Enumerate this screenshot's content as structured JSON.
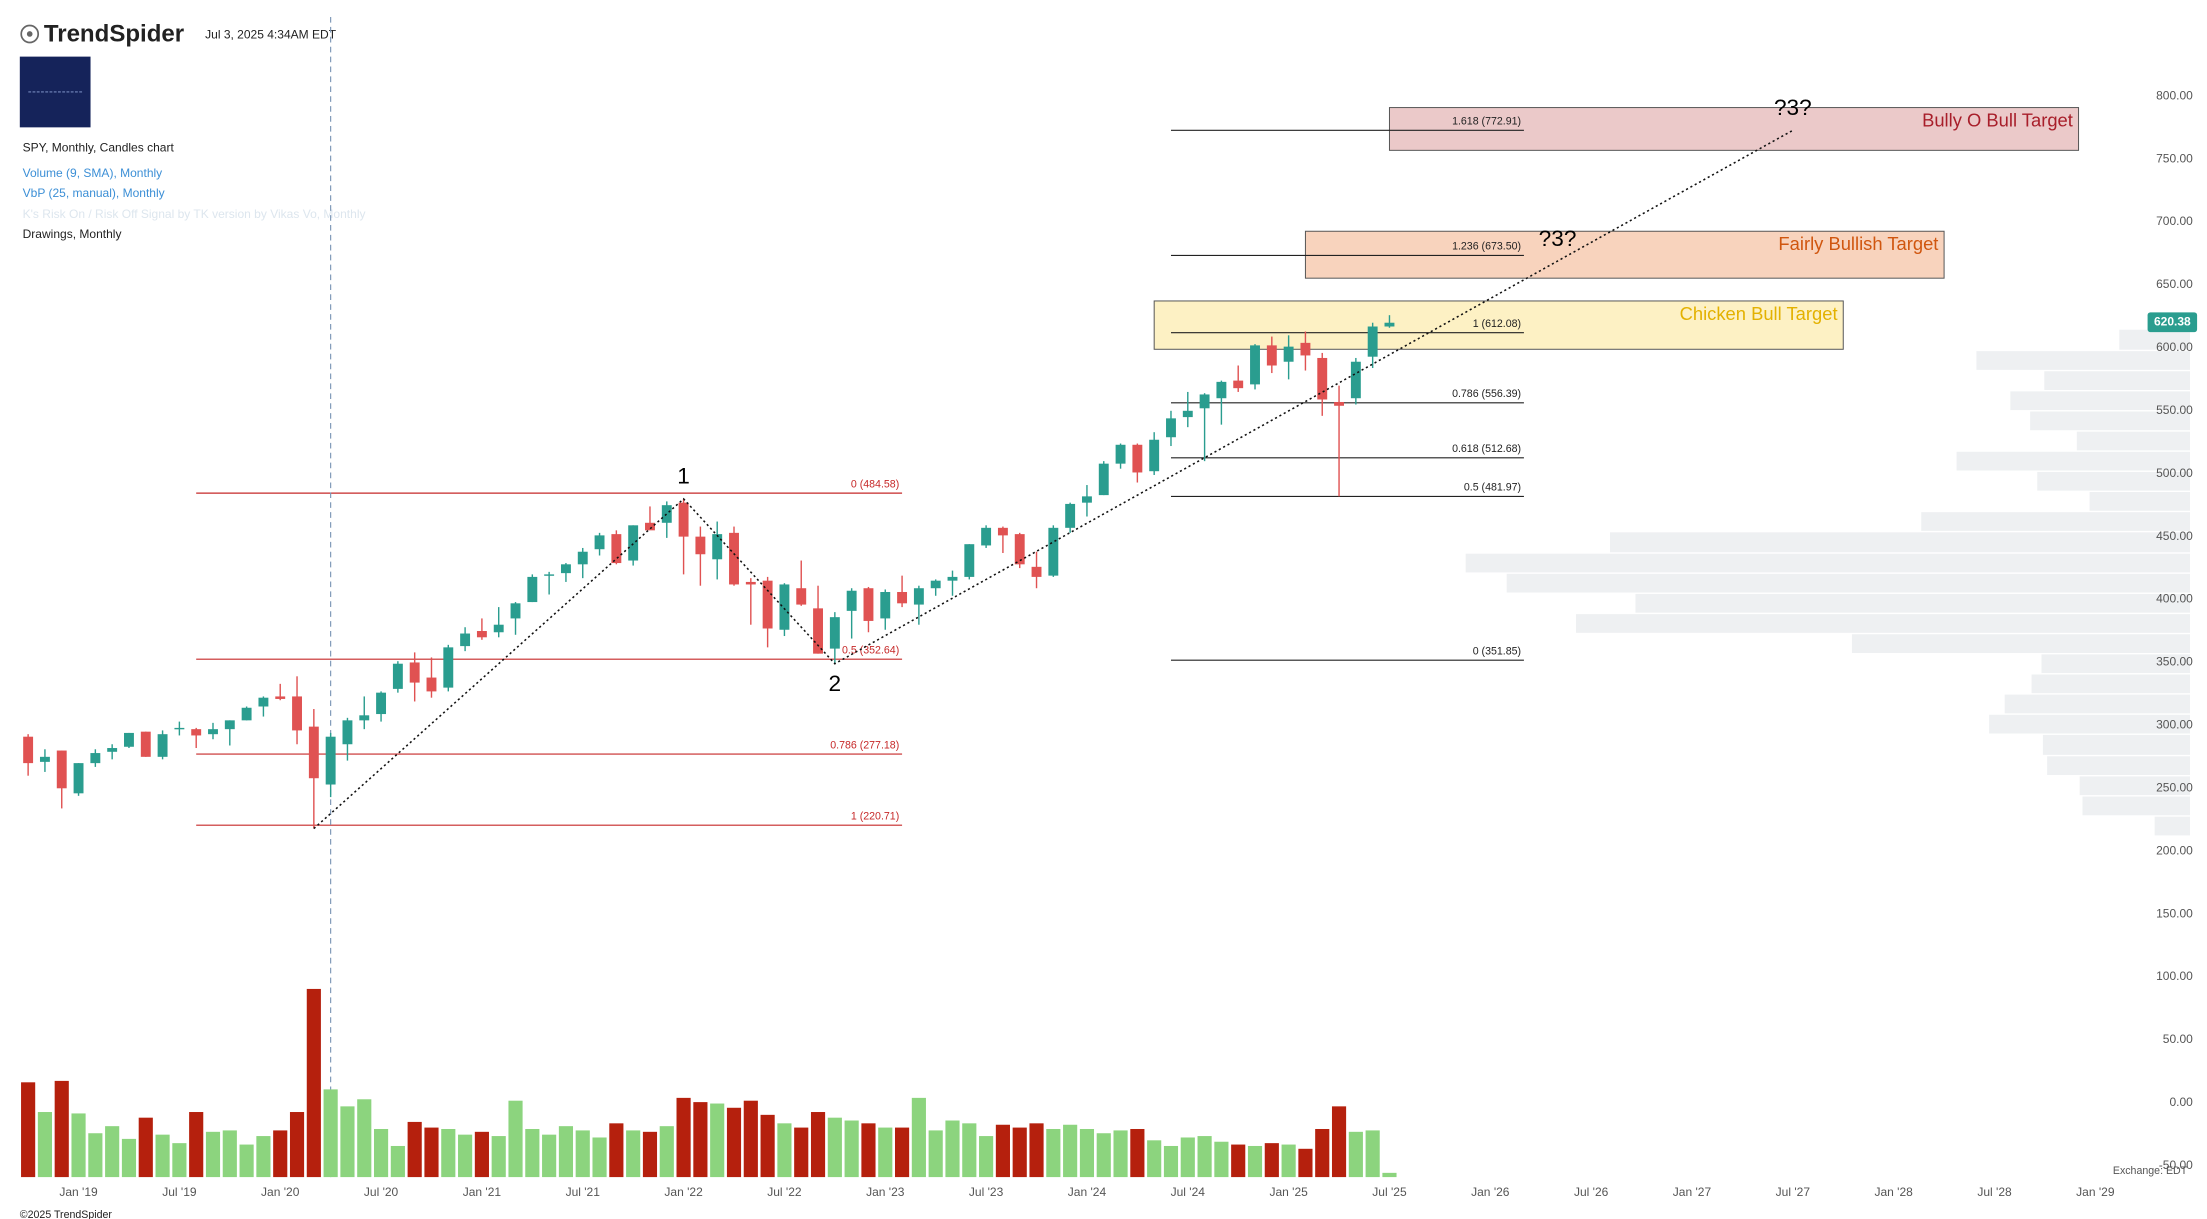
{
  "header": {
    "brand": "TrendSpider",
    "timestamp": "Jul 3, 2025 4:34AM EDT",
    "chart_desc": "SPY, Monthly, Candles chart",
    "indicator_1": "Volume (9, SMA), Monthly",
    "indicator_2": "VbP (25, manual), Monthly",
    "indicator_3": "K's Risk On / Risk Off Signal by TK version by Vikas Vo, Monthly",
    "drawings": "Drawings, Monthly"
  },
  "footer": {
    "copyright": "©2025 TrendSpider",
    "exchange": "Exchange: EDT"
  },
  "chart_data": {
    "type": "candlestick",
    "up_color": "#2a9d8f",
    "down_color": "#e05252",
    "volume_up_color": "#8cd47e",
    "volume_down_color": "#b5200d",
    "x": [
      "2018-10",
      "2018-11",
      "2018-12",
      "2019-01",
      "2019-02",
      "2019-03",
      "2019-04",
      "2019-05",
      "2019-06",
      "2019-07",
      "2019-08",
      "2019-09",
      "2019-10",
      "2019-11",
      "2019-12",
      "2020-01",
      "2020-02",
      "2020-03",
      "2020-04",
      "2020-05",
      "2020-06",
      "2020-07",
      "2020-08",
      "2020-09",
      "2020-10",
      "2020-11",
      "2020-12",
      "2021-01",
      "2021-02",
      "2021-03",
      "2021-04",
      "2021-05",
      "2021-06",
      "2021-07",
      "2021-08",
      "2021-09",
      "2021-10",
      "2021-11",
      "2021-12",
      "2022-01",
      "2022-02",
      "2022-03",
      "2022-04",
      "2022-05",
      "2022-06",
      "2022-07",
      "2022-08",
      "2022-09",
      "2022-10",
      "2022-11",
      "2022-12",
      "2023-01",
      "2023-02",
      "2023-03",
      "2023-04",
      "2023-05",
      "2023-06",
      "2023-07",
      "2023-08",
      "2023-09",
      "2023-10",
      "2023-11",
      "2023-12",
      "2024-01",
      "2024-02",
      "2024-03",
      "2024-04",
      "2024-05",
      "2024-06",
      "2024-07",
      "2024-08",
      "2024-09",
      "2024-10",
      "2024-11",
      "2024-12",
      "2025-01",
      "2025-02",
      "2025-03",
      "2025-04",
      "2025-05",
      "2025-06",
      "2025-07"
    ],
    "open": [
      291,
      271,
      280,
      246,
      270,
      279,
      283,
      295,
      275,
      297,
      297,
      293,
      297,
      304,
      315,
      323,
      323,
      299,
      253,
      285,
      304,
      309,
      329,
      350,
      338,
      330,
      363,
      375,
      374,
      385,
      398,
      419,
      421,
      428,
      440,
      452,
      431,
      461,
      461,
      477,
      450,
      432,
      453,
      414,
      415,
      376,
      409,
      393,
      361,
      391,
      409,
      385,
      406,
      396,
      409,
      415,
      418,
      443,
      457,
      452,
      426,
      419,
      457,
      477,
      483,
      508,
      523,
      502,
      529,
      545,
      552,
      560,
      574,
      571,
      602,
      589,
      604,
      592,
      557,
      560,
      593,
      617
    ],
    "high": [
      293,
      281,
      280,
      270,
      281,
      285,
      294,
      295,
      296,
      303,
      298,
      302,
      304,
      315,
      323,
      333,
      339,
      313,
      294,
      306,
      323,
      327,
      351,
      358,
      354,
      364,
      378,
      385,
      394,
      398,
      420,
      422,
      429,
      441,
      453,
      455,
      459,
      474,
      478,
      480,
      458,
      462,
      458,
      417,
      418,
      413,
      431,
      411,
      390,
      409,
      410,
      408,
      419,
      411,
      416,
      423,
      444,
      459,
      458,
      453,
      438,
      459,
      477,
      491,
      510,
      524,
      524,
      533,
      550,
      565,
      564,
      574,
      586,
      603,
      609,
      610,
      613,
      596,
      570,
      592,
      620,
      626
    ],
    "low": [
      260,
      263,
      234,
      244,
      267,
      273,
      282,
      275,
      273,
      292,
      282,
      289,
      284,
      304,
      307,
      320,
      285,
      218,
      243,
      272,
      297,
      303,
      326,
      319,
      322,
      327,
      359,
      368,
      370,
      372,
      398,
      404,
      414,
      417,
      435,
      428,
      427,
      456,
      449,
      420,
      411,
      416,
      411,
      380,
      362,
      371,
      395,
      357,
      349,
      369,
      374,
      376,
      394,
      380,
      403,
      403,
      416,
      441,
      437,
      425,
      409,
      418,
      453,
      466,
      483,
      504,
      493,
      499,
      522,
      537,
      510,
      539,
      565,
      567,
      580,
      575,
      582,
      546,
      482,
      555,
      584,
      616
    ],
    "close": [
      270,
      275,
      250,
      270,
      278,
      282,
      294,
      275,
      293,
      298,
      292,
      297,
      304,
      314,
      322,
      321,
      296,
      258,
      291,
      304,
      308,
      326,
      349,
      334,
      327,
      362,
      373,
      370,
      380,
      397,
      418,
      420,
      428,
      438,
      451,
      429,
      459,
      455,
      475,
      450,
      436,
      452,
      412,
      412,
      377,
      412,
      396,
      357,
      386,
      407,
      383,
      406,
      397,
      409,
      415,
      418,
      444,
      457,
      451,
      428,
      418,
      457,
      476,
      482,
      508,
      523,
      501,
      527,
      544,
      550,
      563,
      573,
      568,
      602,
      586,
      601,
      594,
      559,
      554,
      589,
      617,
      620
    ],
    "volume": [
      2010,
      1380,
      2040,
      1350,
      930,
      1080,
      810,
      1260,
      900,
      720,
      1380,
      960,
      990,
      690,
      870,
      990,
      1380,
      3990,
      1860,
      1500,
      1650,
      1020,
      660,
      1170,
      1050,
      1020,
      900,
      960,
      870,
      1620,
      1020,
      900,
      1080,
      990,
      840,
      1140,
      990,
      960,
      1080,
      1680,
      1590,
      1560,
      1470,
      1620,
      1320,
      1140,
      1050,
      1380,
      1260,
      1200,
      1140,
      1050,
      1050,
      1680,
      990,
      1200,
      1140,
      870,
      1110,
      1050,
      1140,
      1020,
      1110,
      1020,
      930,
      990,
      1020,
      780,
      660,
      840,
      870,
      750,
      690,
      660,
      720,
      690,
      600,
      1020,
      1500,
      960,
      990,
      90
    ],
    "xlim": [
      "2018-09",
      "2029-05"
    ],
    "xticks": [
      {
        "value": "2019-01",
        "label": "Jan '19"
      },
      {
        "value": "2019-07",
        "label": "Jul '19"
      },
      {
        "value": "2020-01",
        "label": "Jan '20"
      },
      {
        "value": "2020-07",
        "label": "Jul '20"
      },
      {
        "value": "2021-01",
        "label": "Jan '21"
      },
      {
        "value": "2021-07",
        "label": "Jul '21"
      },
      {
        "value": "2022-01",
        "label": "Jan '22"
      },
      {
        "value": "2022-07",
        "label": "Jul '22"
      },
      {
        "value": "2023-01",
        "label": "Jan '23"
      },
      {
        "value": "2023-07",
        "label": "Jul '23"
      },
      {
        "value": "2024-01",
        "label": "Jan '24"
      },
      {
        "value": "2024-07",
        "label": "Jul '24"
      },
      {
        "value": "2025-01",
        "label": "Jan '25"
      },
      {
        "value": "2025-07",
        "label": "Jul '25"
      },
      {
        "value": "2026-01",
        "label": "Jan '26"
      },
      {
        "value": "2026-07",
        "label": "Jul '26"
      },
      {
        "value": "2027-01",
        "label": "Jan '27"
      },
      {
        "value": "2027-07",
        "label": "Jul '27"
      },
      {
        "value": "2028-01",
        "label": "Jan '28"
      },
      {
        "value": "2028-07",
        "label": "Jul '28"
      },
      {
        "value": "2029-01",
        "label": "Jan '29"
      }
    ],
    "ylim": [
      -59,
      809
    ],
    "yticks": [
      {
        "value": 800,
        "label": "800.00"
      },
      {
        "value": 750,
        "label": "750.00"
      },
      {
        "value": 700,
        "label": "700.00"
      },
      {
        "value": 650,
        "label": "650.00"
      },
      {
        "value": 600,
        "label": "600.00"
      },
      {
        "value": 550,
        "label": "550.00"
      },
      {
        "value": 500,
        "label": "500.00"
      },
      {
        "value": 450,
        "label": "450.00"
      },
      {
        "value": 400,
        "label": "400.00"
      },
      {
        "value": 350,
        "label": "350.00"
      },
      {
        "value": 300,
        "label": "300.00"
      },
      {
        "value": 250,
        "label": "250.00"
      },
      {
        "value": 200,
        "label": "200.00"
      },
      {
        "value": 150,
        "label": "150.00"
      },
      {
        "value": 100,
        "label": "100.00"
      },
      {
        "value": 50,
        "label": "50.00"
      },
      {
        "value": 0,
        "label": "0.00"
      },
      {
        "value": -50,
        "label": "-50.00"
      }
    ],
    "last_price": 620.38,
    "last_price_color": "#2a9d8f",
    "volume_profile": {
      "color": "#eef0f2",
      "bins": [
        212,
        228,
        244,
        260,
        276,
        293,
        309,
        325,
        341,
        357,
        373,
        389,
        405,
        421,
        437,
        454,
        470,
        486,
        502,
        518,
        534,
        550,
        566,
        582,
        598,
        615
      ],
      "values": [
        25,
        76,
        78,
        101,
        104,
        142,
        131,
        112,
        105,
        239,
        434,
        392,
        483,
        512,
        410,
        190,
        71,
        108,
        165,
        80,
        113,
        127,
        103,
        151,
        50
      ]
    },
    "fib_sets": [
      {
        "color": "#c62828",
        "x": [
          "2019-08",
          "2023-02"
        ],
        "levels": [
          {
            "value": 484.58,
            "label": "0 (484.58)"
          },
          {
            "value": 352.64,
            "label": "0.5 (352.64)"
          },
          {
            "value": 277.18,
            "label": "0.786 (277.18)"
          },
          {
            "value": 220.71,
            "label": "1 (220.71)"
          }
        ]
      },
      {
        "color": "#222222",
        "x": [
          "2024-06",
          "2026-03"
        ],
        "levels": [
          {
            "value": 772.91,
            "label": "1.618 (772.91)"
          },
          {
            "value": 673.5,
            "label": "1.236 (673.50)"
          },
          {
            "value": 612.08,
            "label": "1 (612.08)"
          },
          {
            "value": 556.39,
            "label": "0.786 (556.39)"
          },
          {
            "value": 512.68,
            "label": "0.618 (512.68)"
          },
          {
            "value": 481.97,
            "label": "0.5 (481.97)"
          },
          {
            "value": 351.85,
            "label": "0 (351.85)"
          }
        ]
      }
    ],
    "zones": [
      {
        "label": "Bully O Bull Target",
        "x": [
          "2025-07",
          "2028-12"
        ],
        "y": [
          757,
          791
        ],
        "fill": "#ebc9c9",
        "text_color": "#a81e2a"
      },
      {
        "label": "Fairly Bullish Target",
        "x": [
          "2025-02",
          "2028-04"
        ],
        "y": [
          655.4,
          692.7
        ],
        "fill": "#f8d3bd",
        "text_color": "#d0560f"
      },
      {
        "label": "Chicken Bull Target",
        "x": [
          "2024-05",
          "2027-10"
        ],
        "y": [
          598.9,
          637.3
        ],
        "fill": "#fdf1c4",
        "text_color": "#e3b100"
      }
    ],
    "wave": {
      "x": [
        "2020-03",
        "2022-01",
        "2022-10",
        "2026-05",
        "2027-07"
      ],
      "y": [
        218,
        480,
        349,
        669,
        772.91
      ],
      "labels": [
        {
          "index": 1,
          "text": "1",
          "pos": "above"
        },
        {
          "index": 2,
          "text": "2",
          "pos": "below"
        },
        {
          "index": 3,
          "text": "?3?",
          "pos": "above"
        },
        {
          "index": 4,
          "text": "?3?",
          "pos": "above"
        }
      ]
    },
    "vertical_line": "2020-04"
  }
}
